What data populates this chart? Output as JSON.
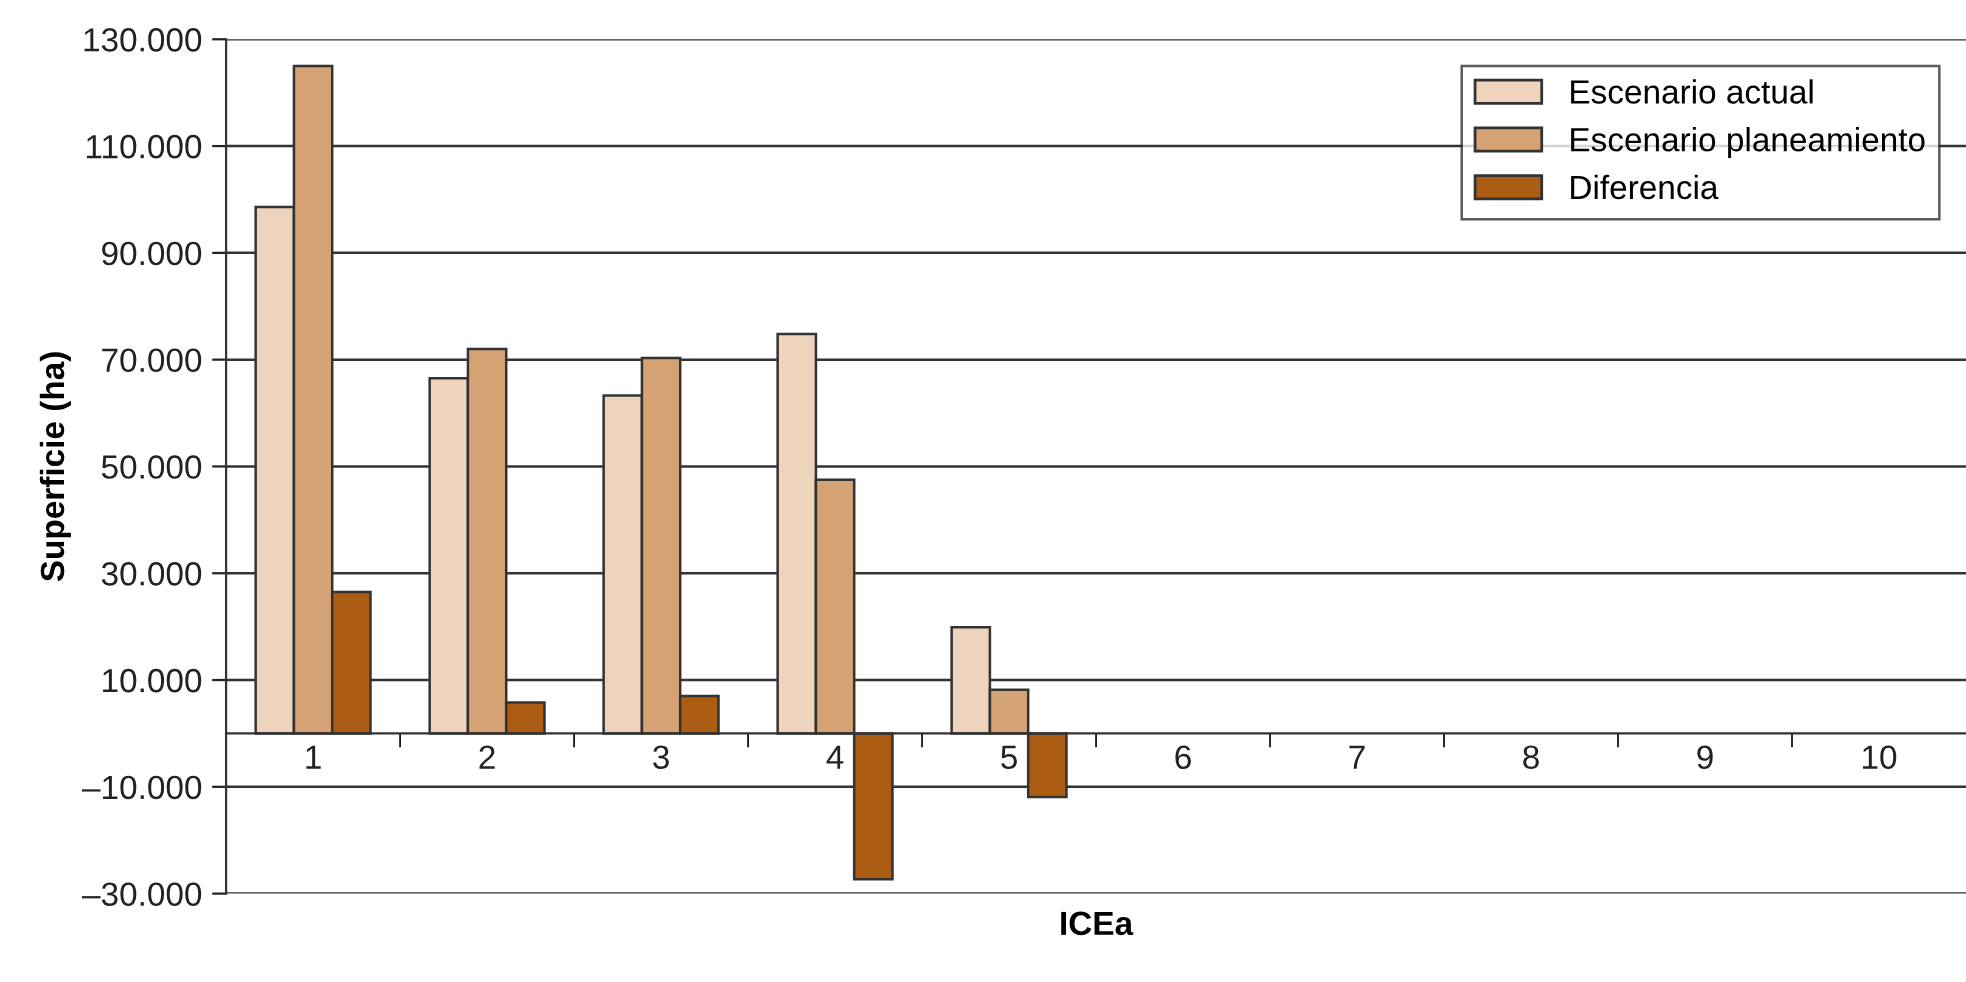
{
  "chart_data": {
    "type": "bar",
    "xlabel": "ICEa",
    "ylabel": "Superficie (ha)",
    "categories": [
      "1",
      "2",
      "3",
      "4",
      "5",
      "6",
      "7",
      "8",
      "9",
      "10"
    ],
    "series": [
      {
        "name": "Escenario actual",
        "color": "#eed4bc",
        "values": [
          98600,
          66500,
          63300,
          74800,
          19900,
          null,
          null,
          null,
          null,
          null
        ]
      },
      {
        "name": "Escenario planeamiento",
        "color": "#d5a274",
        "values": [
          125000,
          72000,
          70300,
          47500,
          8200,
          null,
          null,
          null,
          null,
          null
        ]
      },
      {
        "name": "Diferencia",
        "color": "#ad5c13",
        "values": [
          26500,
          5800,
          7000,
          -27300,
          -11900,
          null,
          null,
          null,
          null,
          null
        ]
      }
    ],
    "ylim": [
      -30000,
      130000
    ],
    "yticks": [
      {
        "value": -30000,
        "label": "–30.000"
      },
      {
        "value": -10000,
        "label": "–10.000"
      },
      {
        "value": 10000,
        "label": "10.000"
      },
      {
        "value": 30000,
        "label": "30.000"
      },
      {
        "value": 50000,
        "label": "50.000"
      },
      {
        "value": 70000,
        "label": "70.000"
      },
      {
        "value": 90000,
        "label": "90.000"
      },
      {
        "value": 110000,
        "label": "110.000"
      },
      {
        "value": 130000,
        "label": "130.000"
      }
    ],
    "grid": "y",
    "legend": "top right"
  }
}
